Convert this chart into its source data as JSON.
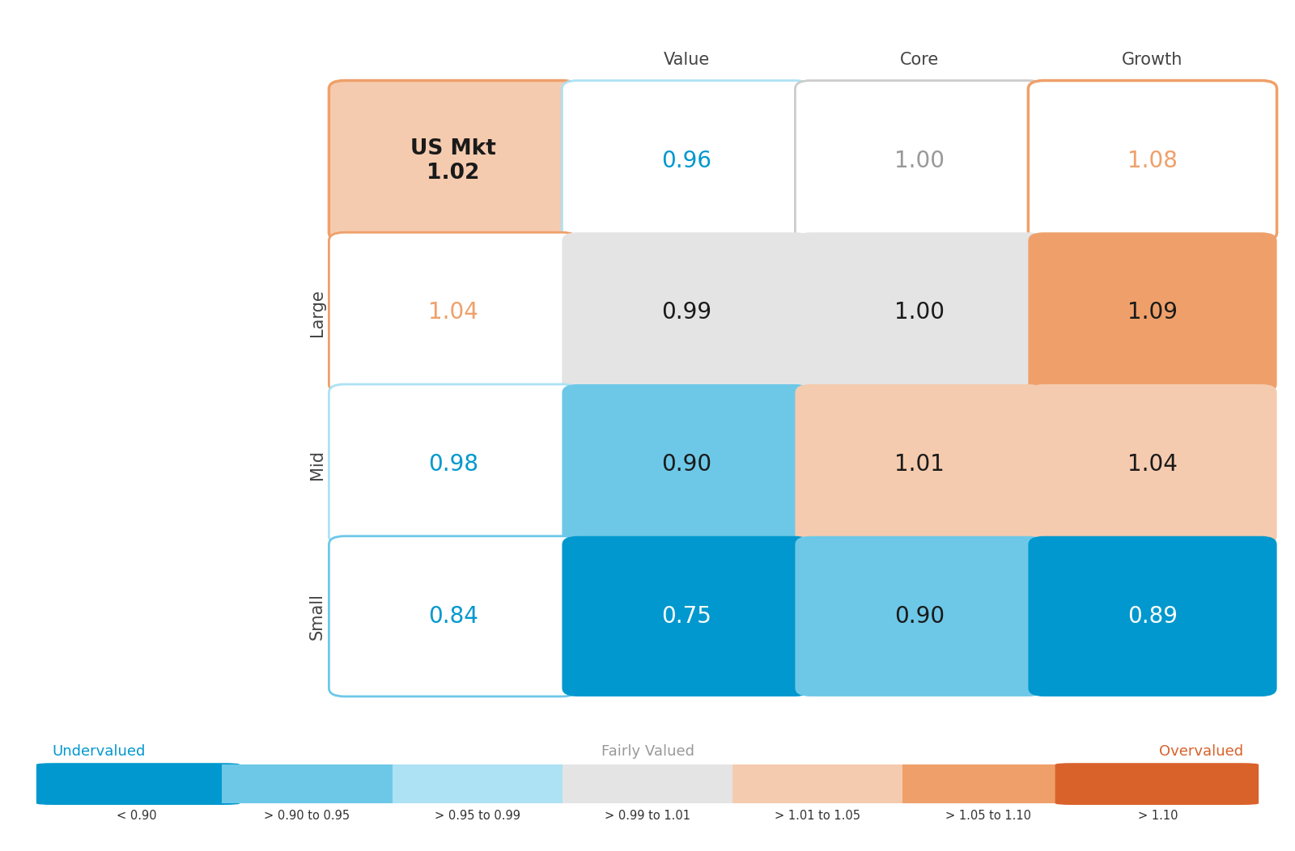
{
  "col_labels": [
    "Value",
    "Core",
    "Growth"
  ],
  "row_labels": [
    "Large",
    "Mid",
    "Small"
  ],
  "grid": [
    [
      {
        "label": "US Mkt\n1.02",
        "value": 1.02,
        "special": "us_mkt"
      },
      {
        "label": "0.96",
        "value": 0.96,
        "special": "top_val"
      },
      {
        "label": "1.00",
        "value": 1.0,
        "special": "top_core"
      },
      {
        "label": "1.08",
        "value": 1.08,
        "special": "top_growth"
      }
    ],
    [
      {
        "label": "1.04",
        "value": 1.04,
        "special": "row_val"
      },
      {
        "label": "0.99",
        "value": 0.99,
        "special": null
      },
      {
        "label": "1.00",
        "value": 1.0,
        "special": null
      },
      {
        "label": "1.09",
        "value": 1.09,
        "special": null
      }
    ],
    [
      {
        "label": "0.98",
        "value": 0.98,
        "special": "row_val"
      },
      {
        "label": "0.90",
        "value": 0.9,
        "special": null
      },
      {
        "label": "1.01",
        "value": 1.01,
        "special": null
      },
      {
        "label": "1.04",
        "value": 1.04,
        "special": null
      }
    ],
    [
      {
        "label": "0.84",
        "value": 0.84,
        "special": "row_val"
      },
      {
        "label": "0.75",
        "value": 0.75,
        "special": null
      },
      {
        "label": "0.90",
        "value": 0.9,
        "special": null
      },
      {
        "label": "0.89",
        "value": 0.89,
        "special": null
      }
    ]
  ],
  "color_ranges": [
    {
      "min": -99,
      "max": 0.9,
      "bg": "#0098CE",
      "text": "#FFFFFF"
    },
    {
      "min": 0.9,
      "max": 0.95,
      "bg": "#6DC8E8",
      "text": "#1A1A1A"
    },
    {
      "min": 0.95,
      "max": 0.99,
      "bg": "#ADE1F4",
      "text": "#1A1A1A"
    },
    {
      "min": 0.99,
      "max": 1.01,
      "bg": "#E4E4E4",
      "text": "#1A1A1A"
    },
    {
      "min": 1.01,
      "max": 1.05,
      "bg": "#F5CBAF",
      "text": "#1A1A1A"
    },
    {
      "min": 1.05,
      "max": 1.1,
      "bg": "#EFA06A",
      "text": "#1A1A1A"
    },
    {
      "min": 1.1,
      "max": 99,
      "bg": "#D9622B",
      "text": "#FFFFFF"
    }
  ],
  "special_styles": {
    "us_mkt": {
      "bg": "#F5CBAF",
      "border": "#EFA06A",
      "text_color": "#1A1A1A",
      "bold": true,
      "border_width": 2.5
    },
    "top_val": {
      "bg": "#FFFFFF",
      "border": "#ADE1F4",
      "text_color": "#0098CE",
      "bold": false,
      "border_width": 2.0
    },
    "top_core": {
      "bg": "#FFFFFF",
      "border": "#CCCCCC",
      "text_color": "#999999",
      "bold": false,
      "border_width": 2.0
    },
    "top_growth": {
      "bg": "#FFFFFF",
      "border": "#EFA06A",
      "text_color": "#EFA06A",
      "bold": false,
      "border_width": 2.5
    },
    "row_val": {
      "bg": "#FFFFFF",
      "border": null,
      "text_color": null,
      "bold": false,
      "border_width": 2.0
    }
  },
  "row_val_border_colors": [
    "#EFA06A",
    "#ADE1F4",
    "#6DC8E8"
  ],
  "row_val_text_colors": [
    "#EFA06A",
    "#0098CE",
    "#0098CE"
  ],
  "legend_segments": [
    {
      "color": "#0098CE",
      "label": "< 0.90"
    },
    {
      "color": "#6DC8E8",
      "label": "> 0.90 to 0.95"
    },
    {
      "color": "#ADE1F4",
      "label": "> 0.95 to 0.99"
    },
    {
      "color": "#E4E4E4",
      "label": "> 0.99 to 1.01"
    },
    {
      "color": "#F5CBAF",
      "label": "> 1.01 to 1.05"
    },
    {
      "color": "#EFA06A",
      "label": "> 1.05 to 1.10"
    },
    {
      "color": "#D9622B",
      "label": "> 1.10"
    }
  ],
  "undervalued_color": "#0098CE",
  "fairly_valued_color": "#999999",
  "overvalued_color": "#D9622B",
  "background_color": "#FFFFFF"
}
